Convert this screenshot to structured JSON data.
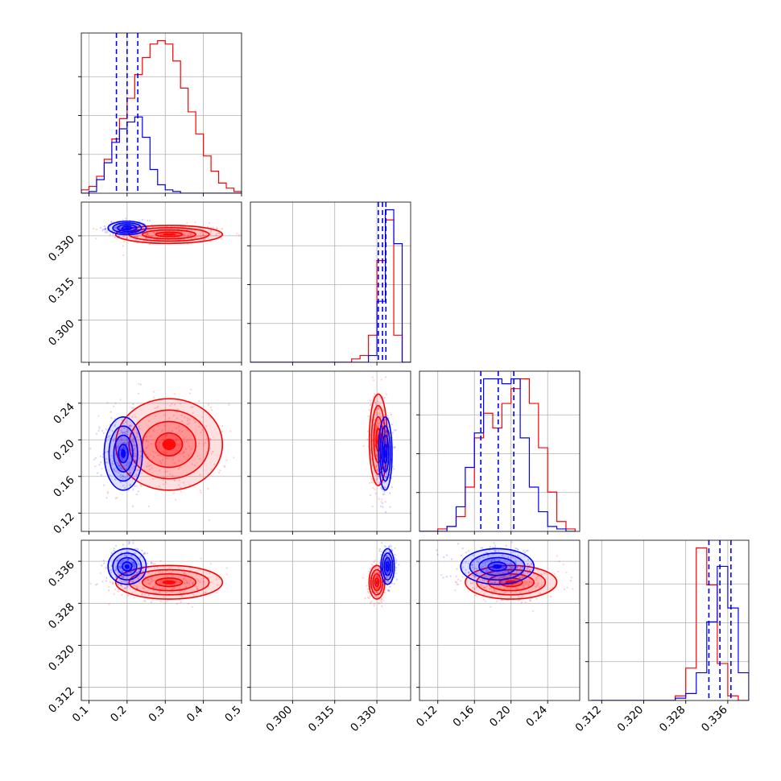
{
  "chart_data": {
    "type": "corner",
    "n_params": 4,
    "grid": true,
    "series": [
      {
        "color": "#ff0000"
      },
      {
        "color": "#0000ff"
      }
    ],
    "params": [
      {
        "range": [
          0.08,
          0.5
        ],
        "ticks": [
          0.1,
          0.2,
          0.3,
          0.4,
          0.5
        ],
        "tick_labels": [
          "0.1",
          "0.2",
          "0.3",
          "0.4",
          "0.5"
        ]
      },
      {
        "range": [
          0.285,
          0.342
        ],
        "ticks": [
          0.3,
          0.315,
          0.33
        ],
        "tick_labels": [
          "0.300",
          "0.315",
          "0.330"
        ]
      },
      {
        "range": [
          0.1,
          0.275
        ],
        "ticks": [
          0.12,
          0.16,
          0.2,
          0.24
        ],
        "tick_labels": [
          "0.12",
          "0.16",
          "0.20",
          "0.24"
        ]
      },
      {
        "range": [
          0.3095,
          0.34
        ],
        "ticks": [
          0.312,
          0.32,
          0.328,
          0.336
        ],
        "tick_labels": [
          "0.312",
          "0.320",
          "0.328",
          "0.336"
        ]
      }
    ],
    "histograms": [
      {
        "param": 0,
        "red": {
          "edges": [
            0.08,
            0.1,
            0.12,
            0.14,
            0.16,
            0.18,
            0.2,
            0.22,
            0.24,
            0.26,
            0.28,
            0.3,
            0.32,
            0.34,
            0.36,
            0.38,
            0.4,
            0.42,
            0.44,
            0.46,
            0.48,
            0.5
          ],
          "counts": [
            2,
            4,
            10,
            20,
            32,
            44,
            56,
            70,
            80,
            88,
            90,
            88,
            78,
            62,
            48,
            35,
            22,
            13,
            6,
            3,
            1
          ]
        },
        "blue": {
          "edges": [
            0.08,
            0.1,
            0.12,
            0.14,
            0.16,
            0.18,
            0.2,
            0.22,
            0.24,
            0.26,
            0.28,
            0.3,
            0.32,
            0.34,
            0.36,
            0.38,
            0.4,
            0.42,
            0.44,
            0.46,
            0.48,
            0.5
          ],
          "counts": [
            0,
            1,
            8,
            18,
            30,
            38,
            42,
            45,
            33,
            14,
            5,
            2,
            1,
            0,
            0,
            0,
            0,
            0,
            0,
            0,
            0
          ]
        },
        "quantiles": [
          0.172,
          0.2,
          0.228
        ]
      },
      {
        "param": 1,
        "red": {
          "edges": [
            0.285,
            0.288,
            0.291,
            0.294,
            0.297,
            0.3,
            0.303,
            0.306,
            0.309,
            0.312,
            0.315,
            0.318,
            0.321,
            0.324,
            0.327,
            0.33,
            0.333,
            0.336,
            0.339,
            0.342
          ],
          "counts": [
            0,
            0,
            0,
            0,
            0,
            0,
            0,
            0,
            0,
            0,
            0,
            0,
            1,
            2,
            8,
            30,
            42,
            8,
            0
          ]
        },
        "blue": {
          "edges": [
            0.285,
            0.288,
            0.291,
            0.294,
            0.297,
            0.3,
            0.303,
            0.306,
            0.309,
            0.312,
            0.315,
            0.318,
            0.321,
            0.324,
            0.327,
            0.33,
            0.333,
            0.336,
            0.339,
            0.342
          ],
          "counts": [
            0,
            0,
            0,
            0,
            0,
            0,
            0,
            0,
            0,
            0,
            0,
            0,
            0,
            0,
            2,
            18,
            45,
            35,
            0
          ]
        },
        "quantiles": [
          0.3305,
          0.332,
          0.3332
        ]
      },
      {
        "param": 2,
        "red": {
          "edges": [
            0.1,
            0.11,
            0.12,
            0.13,
            0.14,
            0.15,
            0.16,
            0.17,
            0.18,
            0.19,
            0.2,
            0.21,
            0.22,
            0.23,
            0.24,
            0.25,
            0.26,
            0.27
          ],
          "counts": [
            0,
            0,
            1,
            2,
            6,
            18,
            38,
            48,
            42,
            52,
            58,
            62,
            52,
            34,
            16,
            4,
            1
          ]
        },
        "blue": {
          "edges": [
            0.1,
            0.11,
            0.12,
            0.13,
            0.14,
            0.15,
            0.16,
            0.17,
            0.18,
            0.19,
            0.2,
            0.21,
            0.22,
            0.23,
            0.24,
            0.25,
            0.26,
            0.27
          ],
          "counts": [
            0,
            0,
            0,
            2,
            10,
            26,
            40,
            62,
            62,
            60,
            62,
            38,
            18,
            8,
            2,
            1,
            0
          ]
        },
        "quantiles": [
          0.167,
          0.186,
          0.203
        ]
      },
      {
        "param": 3,
        "red": {
          "edges": [
            0.31,
            0.312,
            0.314,
            0.316,
            0.318,
            0.32,
            0.322,
            0.324,
            0.326,
            0.328,
            0.33,
            0.332,
            0.334,
            0.336,
            0.338,
            0.34
          ],
          "counts": [
            0,
            0,
            0,
            0,
            0,
            0,
            0,
            0,
            2,
            14,
            66,
            50,
            16,
            2,
            0
          ]
        },
        "blue": {
          "edges": [
            0.31,
            0.312,
            0.314,
            0.316,
            0.318,
            0.32,
            0.322,
            0.324,
            0.326,
            0.328,
            0.33,
            0.332,
            0.334,
            0.336,
            0.338,
            0.34
          ],
          "counts": [
            0,
            0,
            0,
            0,
            0,
            0,
            0,
            0,
            1,
            3,
            12,
            34,
            58,
            40,
            12
          ]
        },
        "quantiles": [
          0.3324,
          0.3345,
          0.3366
        ]
      }
    ],
    "scatter_2d": [
      {
        "x": 0,
        "y": 1,
        "red": {
          "mean": [
            0.31,
            0.3305
          ],
          "sd": [
            0.07,
            0.0016
          ]
        },
        "blue": {
          "mean": [
            0.2,
            0.3328
          ],
          "sd": [
            0.025,
            0.0012
          ]
        }
      },
      {
        "x": 0,
        "y": 2,
        "red": {
          "mean": [
            0.31,
            0.195
          ],
          "sd": [
            0.07,
            0.025
          ]
        },
        "blue": {
          "mean": [
            0.19,
            0.185
          ],
          "sd": [
            0.025,
            0.02
          ]
        }
      },
      {
        "x": 0,
        "y": 3,
        "red": {
          "mean": [
            0.31,
            0.332
          ],
          "sd": [
            0.07,
            0.0016
          ]
        },
        "blue": {
          "mean": [
            0.2,
            0.335
          ],
          "sd": [
            0.025,
            0.0017
          ]
        }
      },
      {
        "x": 1,
        "y": 2,
        "red": {
          "mean": [
            0.3305,
            0.2
          ],
          "sd": [
            0.0016,
            0.025
          ]
        },
        "blue": {
          "mean": [
            0.333,
            0.185
          ],
          "sd": [
            0.0012,
            0.02
          ]
        }
      },
      {
        "x": 1,
        "y": 3,
        "red": {
          "mean": [
            0.33,
            0.332
          ],
          "sd": [
            0.0014,
            0.0016
          ]
        },
        "blue": {
          "mean": [
            0.3338,
            0.335
          ],
          "sd": [
            0.0012,
            0.0017
          ]
        }
      },
      {
        "x": 2,
        "y": 3,
        "red": {
          "mean": [
            0.2,
            0.332
          ],
          "sd": [
            0.025,
            0.0016
          ]
        },
        "blue": {
          "mean": [
            0.185,
            0.335
          ],
          "sd": [
            0.02,
            0.0017
          ]
        }
      }
    ]
  }
}
